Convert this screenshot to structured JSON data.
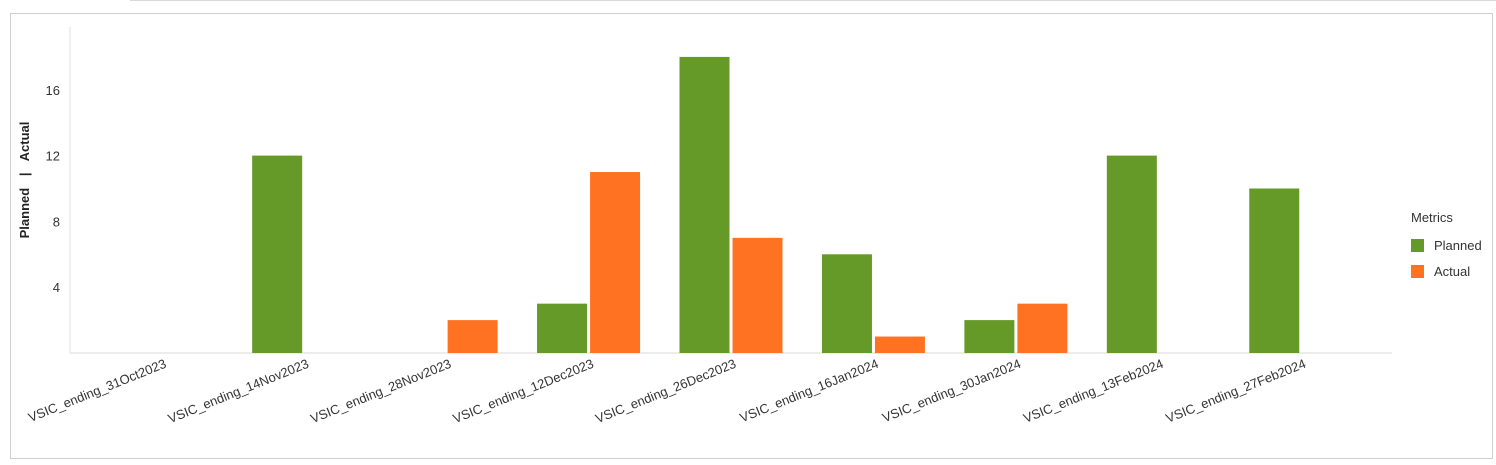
{
  "chart_data": {
    "type": "bar",
    "categories": [
      "VSIC_ending_31Oct2023",
      "VSIC_ending_14Nov2023",
      "VSIC_ending_28Nov2023",
      "VSIC_ending_12Dec2023",
      "VSIC_ending_26Dec2023",
      "VSIC_ending_16Jan2024",
      "VSIC_ending_30Jan2024",
      "VSIC_ending_13Feb2024",
      "VSIC_ending_27Feb2024"
    ],
    "series": [
      {
        "name": "Planned",
        "color": "#669a28",
        "values": [
          0,
          12,
          0,
          3,
          18,
          6,
          2,
          12,
          10
        ]
      },
      {
        "name": "Actual",
        "color": "#ff7222",
        "values": [
          0,
          0,
          2,
          11,
          7,
          1,
          3,
          0,
          0
        ]
      }
    ],
    "ylabel_left": "Planned",
    "ylabel_separator": "|",
    "ylabel_right": "Actual",
    "ylim": [
      0,
      20
    ],
    "yticks": [
      4,
      8,
      12,
      16
    ],
    "grid": false,
    "legend": {
      "title": "Metrics",
      "placement": "right"
    }
  }
}
